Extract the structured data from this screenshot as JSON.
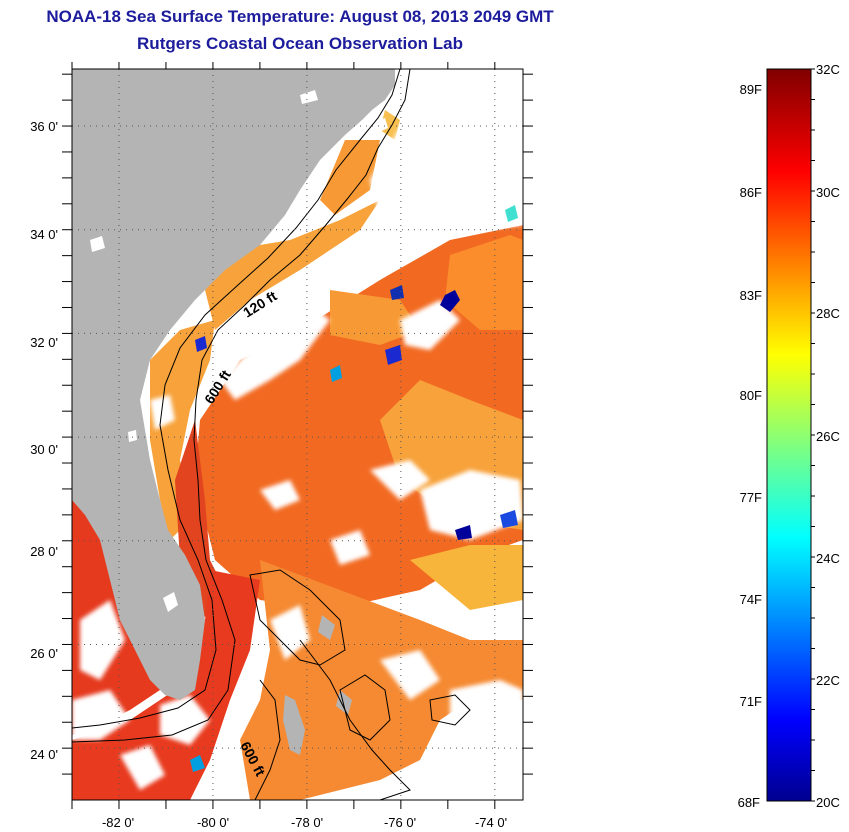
{
  "header": {
    "title": "NOAA-18 Sea Surface Temperature:  August 08, 2013 2049 GMT",
    "subtitle": "Rutgers Coastal Ocean Observation Lab"
  },
  "map": {
    "lat_labels": [
      "36 0'",
      "34 0'",
      "32 0'",
      "30 0'",
      "28 0'",
      "26 0'",
      "24 0'"
    ],
    "lon_labels": [
      "-82 0'",
      "-80 0'",
      "-78 0'",
      "-76 0'",
      "-74 0'"
    ],
    "lat_range": [
      23,
      37.1
    ],
    "lon_range": [
      -83,
      -73.4
    ],
    "contour_labels": [
      "120 ft",
      "600 ft",
      "600 ft"
    ],
    "land_color": "#b4b4b4",
    "grid": "dotted"
  },
  "colorbar": {
    "f_labels": [
      "89F",
      "86F",
      "83F",
      "80F",
      "77F",
      "74F",
      "71F",
      "68F"
    ],
    "c_labels": [
      "32C",
      "30C",
      "28C",
      "26C",
      "24C",
      "22C",
      "20C"
    ],
    "range_c": [
      20,
      32
    ],
    "colormap": "jet"
  }
}
